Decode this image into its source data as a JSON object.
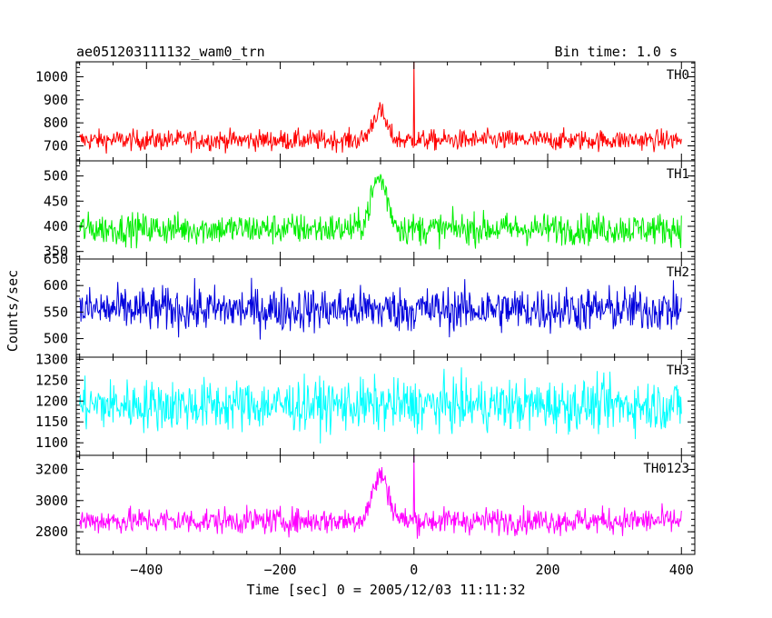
{
  "chart_data": {
    "type": "line",
    "title": "ae051203111132_wam0_trn",
    "bin_time_label": "Bin time: 1.0 s",
    "xlabel": "Time [sec] 0 = 2005/12/03 11:11:32",
    "ylabel": "Counts/sec",
    "xlim": [
      -505,
      420
    ],
    "x_ticks": [
      -400,
      -200,
      0,
      200,
      400
    ],
    "x_tick_labels": [
      "−400",
      "−200",
      "0",
      "200",
      "400"
    ],
    "bin_seconds": 1.0,
    "x_range_data": [
      -500,
      400
    ],
    "panels": [
      {
        "name": "TH0",
        "color": "#ff0000",
        "ylim": [
          635,
          1065
        ],
        "y_ticks": [
          700,
          800,
          900,
          1000
        ],
        "baseline": 725,
        "noise": 40,
        "features": [
          {
            "type": "peak",
            "center": -52,
            "width": 10,
            "amplitude": 125
          },
          {
            "type": "spike",
            "at": 0,
            "value": 1065
          }
        ]
      },
      {
        "name": "TH1",
        "color": "#00ee00",
        "ylim": [
          335,
          530
        ],
        "y_ticks": [
          350,
          400,
          450,
          500
        ],
        "baseline": 395,
        "noise": 28,
        "features": [
          {
            "type": "peak",
            "center": -52,
            "width": 12,
            "amplitude": 100
          }
        ]
      },
      {
        "name": "TH2",
        "color": "#0000dd",
        "ylim": [
          465,
          650
        ],
        "y_ticks": [
          500,
          550,
          600,
          650
        ],
        "baseline": 555,
        "noise": 38,
        "features": []
      },
      {
        "name": "TH3",
        "color": "#00ffff",
        "ylim": [
          1070,
          1305
        ],
        "y_ticks": [
          1100,
          1150,
          1200,
          1250,
          1300
        ],
        "baseline": 1190,
        "noise": 55,
        "features": []
      },
      {
        "name": "TH0123",
        "color": "#ff00ff",
        "ylim": [
          2655,
          3290
        ],
        "y_ticks": [
          2800,
          3000,
          3200
        ],
        "baseline": 2870,
        "noise": 75,
        "features": [
          {
            "type": "peak",
            "center": -50,
            "width": 12,
            "amplitude": 290
          },
          {
            "type": "spike",
            "at": 0,
            "value": 3290
          }
        ]
      }
    ]
  }
}
